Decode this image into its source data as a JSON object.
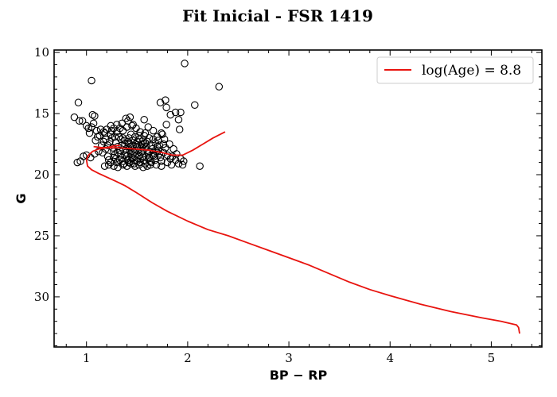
{
  "chart_data": {
    "type": "scatter",
    "title": "Fit Inicial - FSR 1419",
    "xlabel": "BP − RP",
    "ylabel": "G",
    "xlim": [
      0.68,
      5.5
    ],
    "ylim": [
      34.1,
      9.8
    ],
    "y_inverted": true,
    "xticks": [
      1,
      2,
      3,
      4,
      5
    ],
    "yticks": [
      10,
      15,
      20,
      25,
      30
    ],
    "grid": false,
    "legend_position": "top-right",
    "colors": {
      "points": "#000000",
      "isochrone": "#e8140f"
    },
    "scatter_points": [
      [
        1.05,
        12.3
      ],
      [
        1.97,
        10.9
      ],
      [
        2.31,
        12.8
      ],
      [
        2.07,
        14.3
      ],
      [
        0.92,
        14.1
      ],
      [
        1.73,
        14.1
      ],
      [
        1.78,
        13.9
      ],
      [
        1.79,
        14.5
      ],
      [
        1.83,
        15.1
      ],
      [
        1.88,
        14.9
      ],
      [
        1.93,
        14.9
      ],
      [
        1.91,
        15.5
      ],
      [
        1.92,
        16.3
      ],
      [
        1.79,
        15.9
      ],
      [
        1.57,
        15.5
      ],
      [
        1.61,
        16.1
      ],
      [
        1.43,
        15.3
      ],
      [
        1.39,
        15.4
      ],
      [
        1.35,
        15.8
      ],
      [
        0.88,
        15.3
      ],
      [
        0.93,
        15.6
      ],
      [
        0.96,
        15.6
      ],
      [
        1.06,
        15.1
      ],
      [
        1.08,
        15.2
      ],
      [
        1.0,
        16.0
      ],
      [
        1.02,
        16.2
      ],
      [
        1.05,
        16.1
      ],
      [
        1.07,
        15.8
      ],
      [
        1.1,
        16.4
      ],
      [
        1.03,
        16.6
      ],
      [
        1.13,
        16.8
      ],
      [
        1.17,
        16.5
      ],
      [
        1.2,
        16.3
      ],
      [
        1.24,
        16.0
      ],
      [
        1.27,
        16.2
      ],
      [
        1.3,
        16.5
      ],
      [
        1.33,
        16.2
      ],
      [
        1.36,
        16.4
      ],
      [
        1.4,
        16.1
      ],
      [
        1.45,
        16.0
      ],
      [
        1.49,
        16.2
      ],
      [
        1.53,
        16.5
      ],
      [
        1.57,
        16.8
      ],
      [
        1.62,
        17.0
      ],
      [
        1.66,
        17.1
      ],
      [
        1.71,
        17.2
      ],
      [
        1.75,
        16.7
      ],
      [
        1.77,
        17.1
      ],
      [
        1.82,
        17.5
      ],
      [
        1.78,
        17.8
      ],
      [
        1.76,
        18.2
      ],
      [
        1.8,
        18.4
      ],
      [
        1.85,
        18.5
      ],
      [
        1.88,
        18.8
      ],
      [
        1.93,
        18.7
      ],
      [
        1.96,
        18.9
      ],
      [
        1.95,
        19.2
      ],
      [
        1.91,
        19.1
      ],
      [
        1.84,
        19.2
      ],
      [
        1.8,
        19.0
      ],
      [
        1.74,
        19.3
      ],
      [
        1.69,
        19.2
      ],
      [
        1.64,
        19.0
      ],
      [
        1.6,
        19.3
      ],
      [
        1.56,
        19.4
      ],
      [
        1.52,
        19.2
      ],
      [
        1.48,
        19.3
      ],
      [
        1.44,
        19.1
      ],
      [
        1.4,
        19.3
      ],
      [
        1.36,
        19.2
      ],
      [
        1.31,
        19.4
      ],
      [
        1.27,
        19.3
      ],
      [
        1.22,
        19.2
      ],
      [
        1.18,
        19.3
      ],
      [
        2.12,
        19.3
      ],
      [
        0.91,
        19.0
      ],
      [
        0.94,
        18.9
      ],
      [
        0.97,
        18.5
      ],
      [
        1.0,
        18.4
      ],
      [
        1.04,
        18.6
      ],
      [
        1.08,
        18.3
      ],
      [
        1.12,
        18.1
      ],
      [
        1.16,
        18.2
      ],
      [
        1.19,
        17.9
      ],
      [
        1.21,
        17.6
      ],
      [
        1.23,
        17.3
      ],
      [
        1.25,
        17.0
      ],
      [
        1.24,
        16.7
      ],
      [
        1.28,
        16.9
      ],
      [
        1.29,
        17.4
      ],
      [
        1.31,
        17.7
      ],
      [
        1.33,
        18.0
      ],
      [
        1.34,
        18.3
      ],
      [
        1.35,
        18.6
      ],
      [
        1.36,
        18.9
      ],
      [
        1.38,
        17.2
      ],
      [
        1.38,
        17.5
      ],
      [
        1.39,
        17.9
      ],
      [
        1.39,
        18.2
      ],
      [
        1.4,
        18.5
      ],
      [
        1.41,
        18.8
      ],
      [
        1.42,
        17.0
      ],
      [
        1.42,
        17.4
      ],
      [
        1.43,
        17.7
      ],
      [
        1.43,
        18.0
      ],
      [
        1.44,
        18.3
      ],
      [
        1.45,
        18.7
      ],
      [
        1.46,
        17.2
      ],
      [
        1.46,
        17.6
      ],
      [
        1.47,
        17.9
      ],
      [
        1.47,
        18.2
      ],
      [
        1.48,
        18.5
      ],
      [
        1.49,
        18.8
      ],
      [
        1.5,
        17.3
      ],
      [
        1.5,
        17.7
      ],
      [
        1.51,
        18.0
      ],
      [
        1.52,
        18.4
      ],
      [
        1.53,
        18.7
      ],
      [
        1.54,
        17.5
      ],
      [
        1.55,
        17.8
      ],
      [
        1.55,
        18.1
      ],
      [
        1.56,
        18.5
      ],
      [
        1.57,
        18.8
      ],
      [
        1.58,
        17.4
      ],
      [
        1.59,
        17.7
      ],
      [
        1.6,
        18.0
      ],
      [
        1.61,
        18.3
      ],
      [
        1.62,
        18.6
      ],
      [
        1.63,
        18.9
      ],
      [
        1.64,
        17.6
      ],
      [
        1.65,
        17.9
      ],
      [
        1.66,
        18.2
      ],
      [
        1.67,
        18.5
      ],
      [
        1.68,
        18.8
      ],
      [
        1.7,
        17.7
      ],
      [
        1.71,
        18.0
      ],
      [
        1.72,
        18.3
      ],
      [
        1.73,
        18.6
      ],
      [
        1.74,
        18.9
      ],
      [
        1.26,
        17.8
      ],
      [
        1.27,
        18.1
      ],
      [
        1.28,
        18.4
      ],
      [
        1.29,
        18.7
      ],
      [
        1.3,
        19.0
      ],
      [
        1.32,
        16.9
      ],
      [
        1.34,
        17.1
      ],
      [
        1.36,
        17.0
      ],
      [
        1.44,
        16.7
      ],
      [
        1.48,
        16.9
      ],
      [
        1.52,
        17.1
      ],
      [
        1.56,
        17.2
      ],
      [
        1.6,
        17.3
      ],
      [
        1.68,
        17.4
      ],
      [
        1.72,
        17.6
      ],
      [
        1.76,
        17.5
      ],
      [
        1.21,
        18.5
      ],
      [
        1.22,
        18.8
      ],
      [
        1.24,
        19.0
      ],
      [
        1.15,
        17.6
      ],
      [
        1.17,
        17.3
      ],
      [
        1.19,
        17.1
      ],
      [
        1.11,
        16.9
      ],
      [
        1.14,
        16.3
      ],
      [
        1.09,
        17.2
      ],
      [
        1.37,
        19.1
      ],
      [
        1.42,
        19.0
      ],
      [
        1.47,
        19.1
      ],
      [
        1.53,
        19.0
      ],
      [
        1.58,
        19.1
      ],
      [
        1.63,
        19.2
      ],
      [
        1.86,
        17.9
      ],
      [
        1.89,
        18.3
      ],
      [
        1.83,
        18.7
      ],
      [
        1.3,
        15.9
      ],
      [
        1.41,
        15.6
      ],
      [
        1.46,
        15.9
      ],
      [
        1.25,
        16.4
      ],
      [
        1.18,
        16.6
      ],
      [
        1.49,
        17.5
      ],
      [
        1.54,
        18.2
      ],
      [
        1.38,
        18.4
      ],
      [
        1.45,
        18.6
      ],
      [
        1.31,
        18.2
      ],
      [
        1.35,
        17.6
      ],
      [
        1.41,
        17.3
      ],
      [
        1.57,
        17.5
      ],
      [
        1.62,
        18.1
      ],
      [
        1.66,
        18.4
      ],
      [
        1.69,
        18.1
      ],
      [
        1.61,
        18.7
      ],
      [
        1.5,
        18.9
      ],
      [
        1.44,
        18.9
      ],
      [
        1.33,
        18.8
      ],
      [
        1.27,
        18.6
      ],
      [
        1.52,
        16.8
      ],
      [
        1.58,
        16.6
      ],
      [
        1.66,
        16.4
      ],
      [
        1.7,
        16.9
      ],
      [
        1.74,
        16.6
      ]
    ],
    "series": [
      {
        "name": "log(Age) = 8.8",
        "x": [
          5.28,
          5.27,
          5.25,
          5.2,
          5.1,
          4.9,
          4.6,
          4.3,
          4.0,
          3.8,
          3.6,
          3.4,
          3.2,
          3.0,
          2.8,
          2.6,
          2.4,
          2.2,
          2.0,
          1.8,
          1.65,
          1.5,
          1.38,
          1.28,
          1.2,
          1.12,
          1.05,
          1.01,
          1.0,
          1.02,
          1.06,
          1.12,
          1.2,
          1.32,
          1.48,
          1.62,
          1.75,
          1.85,
          1.95,
          2.05,
          2.15,
          2.25,
          2.37
        ],
        "y": [
          33.0,
          32.5,
          32.3,
          32.2,
          32.0,
          31.7,
          31.2,
          30.6,
          29.9,
          29.4,
          28.8,
          28.1,
          27.4,
          26.8,
          26.2,
          25.6,
          25.0,
          24.5,
          23.8,
          23.0,
          22.3,
          21.5,
          20.9,
          20.5,
          20.2,
          19.9,
          19.6,
          19.3,
          18.8,
          18.4,
          18.1,
          17.9,
          17.8,
          17.8,
          17.9,
          18.0,
          18.2,
          18.4,
          18.4,
          18.0,
          17.5,
          17.0,
          16.5
        ]
      },
      {
        "name": "",
        "x": [
          1.07,
          1.12,
          1.17,
          1.22,
          1.27,
          1.33
        ],
        "y": [
          17.7,
          17.75,
          17.8,
          17.75,
          17.65,
          17.6
        ]
      }
    ]
  }
}
